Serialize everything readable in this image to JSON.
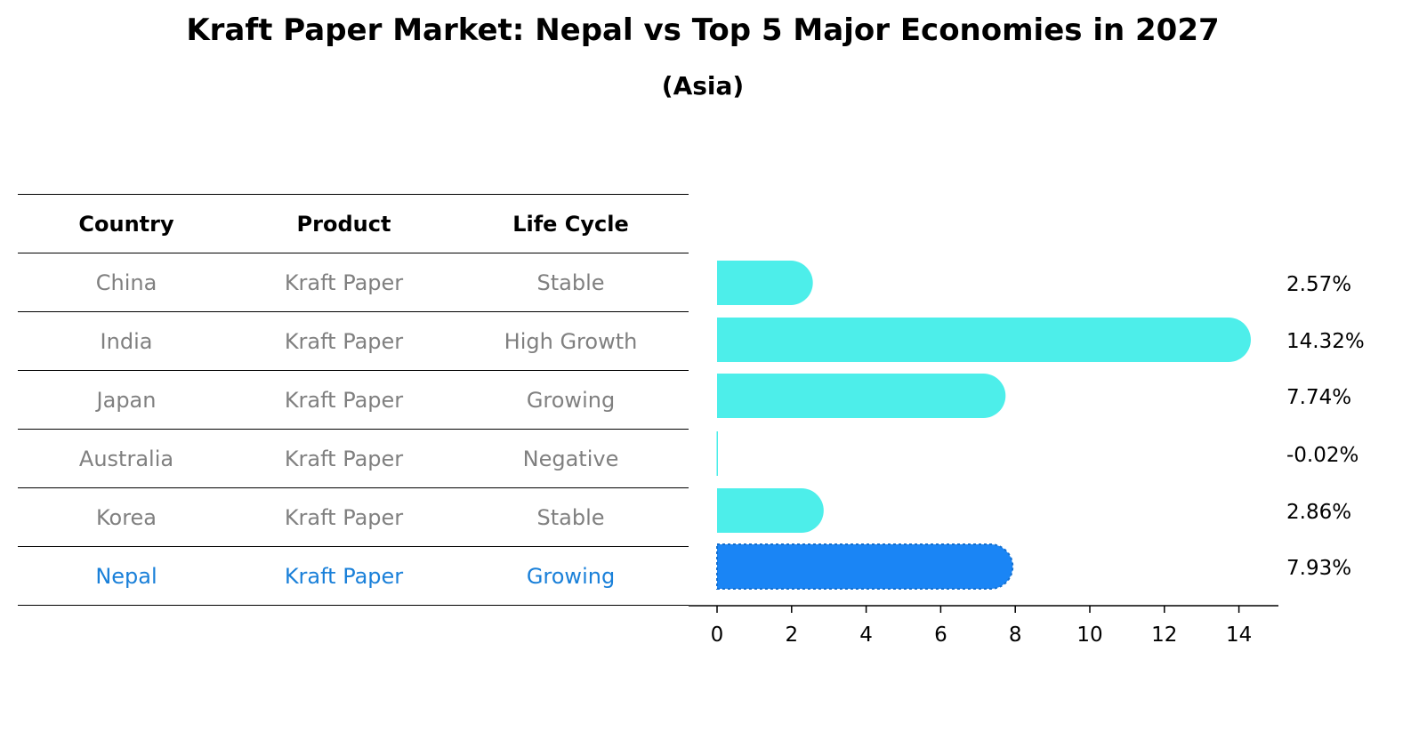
{
  "title": "Kraft Paper Market: Nepal vs Top 5 Major Economies in 2027",
  "subtitle": "(Asia)",
  "table": {
    "headers": [
      "Country",
      "Product",
      "Life Cycle"
    ],
    "rows": [
      {
        "country": "China",
        "product": "Kraft Paper",
        "life_cycle": "Stable"
      },
      {
        "country": "India",
        "product": "Kraft Paper",
        "life_cycle": "High Growth"
      },
      {
        "country": "Japan",
        "product": "Kraft Paper",
        "life_cycle": "Growing"
      },
      {
        "country": "Australia",
        "product": "Kraft Paper",
        "life_cycle": "Negative"
      },
      {
        "country": "Korea",
        "product": "Kraft Paper",
        "life_cycle": "Stable"
      },
      {
        "country": "Nepal",
        "product": "Kraft Paper",
        "life_cycle": "Growing"
      }
    ]
  },
  "chart_data": {
    "type": "bar",
    "orientation": "horizontal",
    "title": "Kraft Paper Market: Nepal vs Top 5 Major Economies in 2027",
    "subtitle": "(Asia)",
    "categories": [
      "China",
      "India",
      "Japan",
      "Australia",
      "Korea",
      "Nepal"
    ],
    "values": [
      2.57,
      14.32,
      7.74,
      -0.02,
      2.86,
      7.93
    ],
    "labels": [
      "2.57%",
      "14.32%",
      "7.74%",
      "-0.02%",
      "2.86%",
      "7.93%"
    ],
    "highlight": "Nepal",
    "xticks": [
      "0",
      "2",
      "4",
      "6",
      "8",
      "10",
      "12",
      "14"
    ],
    "xlim": [
      -0.8,
      15
    ],
    "colors": {
      "default": "#4deeea",
      "highlight": "#1a85f5",
      "highlight_text": "#1a80d9",
      "muted_text": "#808080"
    }
  }
}
